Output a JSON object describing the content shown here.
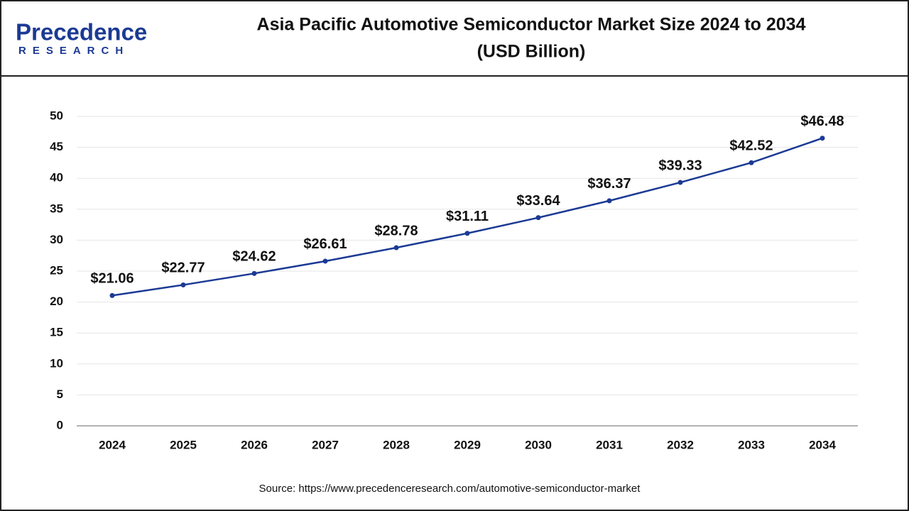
{
  "logo": {
    "name": "Precedence",
    "tagline": "RESEARCH"
  },
  "chart_data": {
    "type": "line",
    "title": "Asia Pacific Automotive Semiconductor Market Size 2024 to 2034",
    "subtitle": "(USD Billion)",
    "categories": [
      "2024",
      "2025",
      "2026",
      "2027",
      "2028",
      "2029",
      "2030",
      "2031",
      "2032",
      "2033",
      "2034"
    ],
    "values": [
      21.06,
      22.77,
      24.62,
      26.61,
      28.78,
      31.11,
      33.64,
      36.37,
      39.33,
      42.52,
      46.48
    ],
    "value_labels": [
      "$21.06",
      "$22.77",
      "$24.62",
      "$26.61",
      "$28.78",
      "$31.11",
      "$33.64",
      "$36.37",
      "$39.33",
      "$42.52",
      "$46.48"
    ],
    "color": "#1b3a94",
    "ylim": [
      0,
      50
    ],
    "yticks": [
      0,
      5,
      10,
      15,
      20,
      25,
      30,
      35,
      40,
      45,
      50
    ],
    "grid": true
  },
  "source": "Source: https://www.precedenceresearch.com/automotive-semiconductor-market"
}
